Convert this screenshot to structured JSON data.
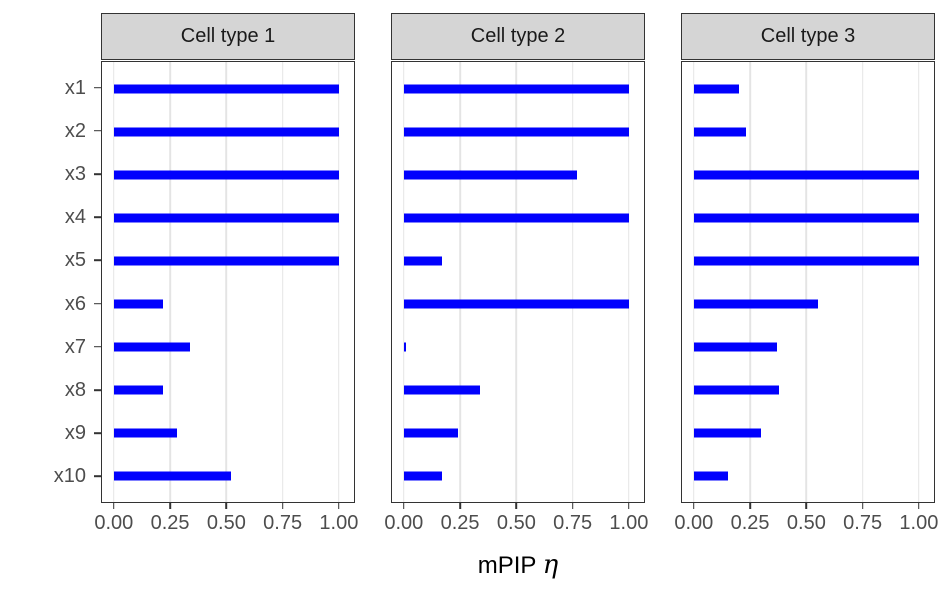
{
  "colors": {
    "bar": "#0101fd",
    "strip_bg": "#d5d5d5",
    "panel_border": "#333333",
    "gridline": "#e4e4e4",
    "axis_text": "#4d4d4d",
    "title_text": "#000000"
  },
  "chart_data": {
    "type": "bar",
    "orientation": "horizontal",
    "title": "",
    "xlabel": "mPIP η",
    "xlabel_main": "mPIP",
    "xlabel_symbol": "η",
    "ylabel": "",
    "xlim": [
      0,
      1
    ],
    "grid": "vertical-major-only",
    "legend": "none",
    "categories": [
      "x1",
      "x2",
      "x3",
      "x4",
      "x5",
      "x6",
      "x7",
      "x8",
      "x9",
      "x10"
    ],
    "x_ticks": [
      "0.00",
      "0.25",
      "0.50",
      "0.75",
      "1.00"
    ],
    "x_tick_values": [
      0,
      0.25,
      0.5,
      0.75,
      1
    ],
    "facets": [
      {
        "label": "Cell type 1",
        "values": [
          1.0,
          1.0,
          1.0,
          1.0,
          1.0,
          0.22,
          0.34,
          0.22,
          0.28,
          0.52
        ]
      },
      {
        "label": "Cell type 2",
        "values": [
          1.0,
          1.0,
          0.77,
          1.0,
          0.17,
          1.0,
          0.01,
          0.34,
          0.24,
          0.17
        ]
      },
      {
        "label": "Cell type 3",
        "values": [
          0.2,
          0.23,
          1.0,
          1.0,
          1.0,
          0.55,
          0.37,
          0.38,
          0.3,
          0.15
        ]
      }
    ]
  }
}
